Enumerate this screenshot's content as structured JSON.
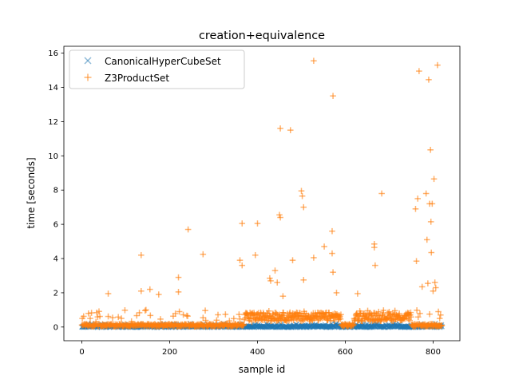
{
  "chart_data": {
    "type": "scatter",
    "title": "creation+equivalence",
    "xlabel": "sample id",
    "ylabel": "time [seconds]",
    "xlim": [
      -41,
      861
    ],
    "ylim": [
      -0.8,
      16.4
    ],
    "xticks": [
      0,
      200,
      400,
      600,
      800
    ],
    "yticks": [
      0,
      2,
      4,
      6,
      8,
      10,
      12,
      14,
      16
    ],
    "grid": false,
    "legend_position": "top-left",
    "series": [
      {
        "name": "CanonicalHyperCubeSet",
        "marker": "x",
        "color": "#1f77b4",
        "alpha": 0.5,
        "x_range": [
          0,
          820
        ],
        "typical_y_range": [
          -0.05,
          0.2
        ],
        "num_samples": 821
      },
      {
        "name": "Z3ProductSet",
        "marker": "+",
        "color": "#ff7f0e",
        "alpha": 0.6,
        "x_range": [
          0,
          820
        ],
        "typical_y_range": [
          0.0,
          1.0
        ],
        "num_samples": 821,
        "outliers": [
          [
            60,
            1.95
          ],
          [
            135,
            4.2
          ],
          [
            135,
            2.1
          ],
          [
            155,
            2.2
          ],
          [
            175,
            1.9
          ],
          [
            220,
            2.9
          ],
          [
            220,
            2.05
          ],
          [
            242,
            5.7
          ],
          [
            276,
            4.25
          ],
          [
            360,
            3.9
          ],
          [
            365,
            6.05
          ],
          [
            365,
            3.6
          ],
          [
            400,
            6.05
          ],
          [
            395,
            4.2
          ],
          [
            428,
            2.85
          ],
          [
            430,
            2.7
          ],
          [
            440,
            3.3
          ],
          [
            445,
            2.6
          ],
          [
            450,
            6.55
          ],
          [
            452,
            6.4
          ],
          [
            452,
            11.6
          ],
          [
            458,
            1.8
          ],
          [
            475,
            11.5
          ],
          [
            480,
            3.9
          ],
          [
            500,
            7.95
          ],
          [
            502,
            7.65
          ],
          [
            505,
            7.0
          ],
          [
            505,
            2.75
          ],
          [
            528,
            4.05
          ],
          [
            528,
            15.55
          ],
          [
            552,
            4.7
          ],
          [
            572,
            13.5
          ],
          [
            570,
            5.6
          ],
          [
            572,
            3.2
          ],
          [
            570,
            4.3
          ],
          [
            580,
            2.0
          ],
          [
            628,
            1.95
          ],
          [
            666,
            4.85
          ],
          [
            666,
            4.65
          ],
          [
            668,
            3.6
          ],
          [
            683,
            7.8
          ],
          [
            760,
            6.9
          ],
          [
            762,
            3.85
          ],
          [
            765,
            7.5
          ],
          [
            768,
            14.95
          ],
          [
            775,
            2.35
          ],
          [
            784,
            7.8
          ],
          [
            786,
            5.1
          ],
          [
            788,
            2.55
          ],
          [
            790,
            14.45
          ],
          [
            792,
            7.2
          ],
          [
            794,
            10.35
          ],
          [
            795,
            6.15
          ],
          [
            796,
            4.35
          ],
          [
            798,
            7.2
          ],
          [
            800,
            2.1
          ],
          [
            802,
            8.65
          ],
          [
            804,
            2.6
          ],
          [
            806,
            2.3
          ],
          [
            810,
            15.3
          ],
          [
            812,
            0.9
          ],
          [
            815,
            0.5
          ]
        ]
      }
    ]
  }
}
